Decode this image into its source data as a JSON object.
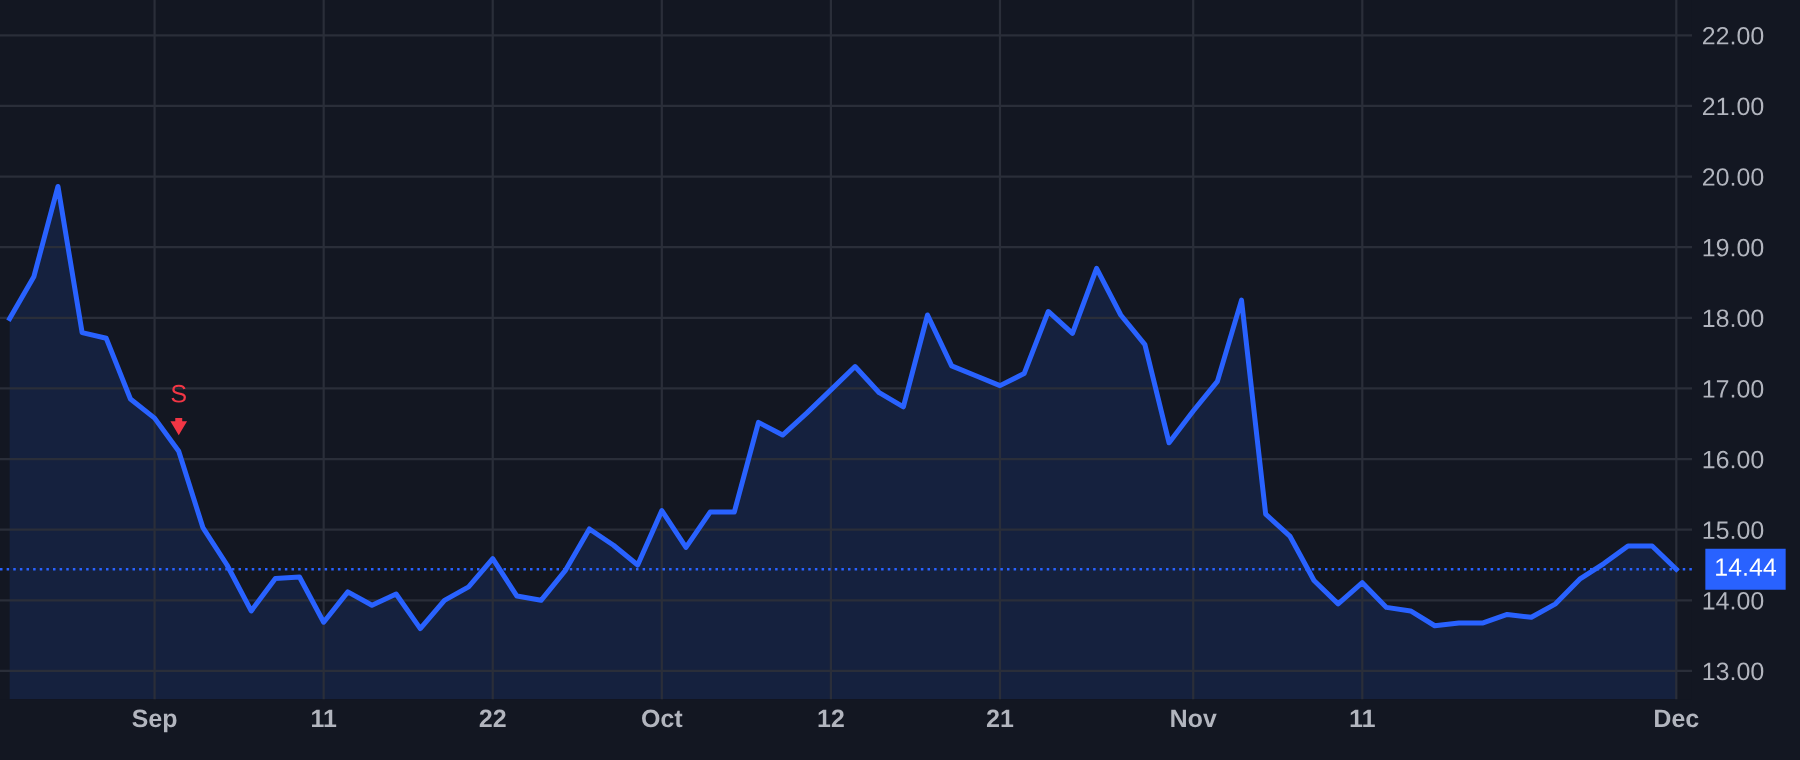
{
  "chart_data": {
    "type": "area",
    "categories": [
      null,
      null,
      null,
      null,
      null,
      null,
      "Sep",
      null,
      null,
      null,
      null,
      null,
      null,
      "11",
      null,
      null,
      null,
      null,
      null,
      null,
      "22",
      null,
      null,
      null,
      null,
      null,
      null,
      "Oct",
      null,
      null,
      null,
      null,
      null,
      null,
      "12",
      null,
      null,
      null,
      null,
      null,
      null,
      "21",
      null,
      null,
      null,
      null,
      null,
      null,
      null,
      "Nov",
      null,
      null,
      null,
      null,
      null,
      null,
      "11",
      null,
      null,
      null,
      null,
      null,
      null,
      null,
      null,
      null,
      null,
      null,
      null,
      "Dec"
    ],
    "series": [
      {
        "color": "#2962ff",
        "values": [
          17.99,
          18.58,
          19.86,
          17.79,
          17.71,
          16.85,
          16.58,
          16.11,
          15.03,
          14.5,
          13.85,
          14.31,
          14.33,
          13.69,
          14.12,
          13.93,
          14.09,
          13.6,
          14.0,
          14.19,
          14.59,
          14.06,
          14.0,
          14.42,
          15.01,
          14.78,
          14.5,
          15.27,
          14.75,
          15.25,
          15.25,
          16.52,
          16.34,
          16.65,
          16.98,
          17.31,
          16.94,
          16.74,
          18.04,
          17.32,
          17.18,
          17.04,
          17.21,
          18.09,
          17.78,
          18.7,
          18.04,
          17.62,
          16.23,
          16.68,
          17.1,
          18.25,
          15.22,
          14.91,
          14.28,
          13.95,
          14.25,
          13.9,
          13.85,
          13.64,
          13.68,
          13.68,
          13.8,
          13.76,
          13.95,
          14.3,
          14.52,
          14.77,
          14.77,
          14.44
        ]
      }
    ],
    "ylim": [
      12.6,
      22.5
    ],
    "yticks": [
      {
        "value": 13,
        "label": "13.00"
      },
      {
        "value": 14,
        "label": "14.00"
      },
      {
        "value": 15,
        "label": "15.00"
      },
      {
        "value": 16,
        "label": "16.00"
      },
      {
        "value": 17,
        "label": "17.00"
      },
      {
        "value": 18,
        "label": "18.00"
      },
      {
        "value": 19,
        "label": "19.00"
      },
      {
        "value": 20,
        "label": "20.00"
      },
      {
        "value": 21,
        "label": "21.00"
      },
      {
        "value": 22,
        "label": "22.00"
      }
    ],
    "ref_lines": [
      {
        "axis": "y",
        "value": 14.44,
        "label": "14.44",
        "color": "#2962ff",
        "line_style": "dotted"
      }
    ],
    "annotations": [
      {
        "text": "S",
        "y": 16.11
      }
    ],
    "grid": true
  }
}
